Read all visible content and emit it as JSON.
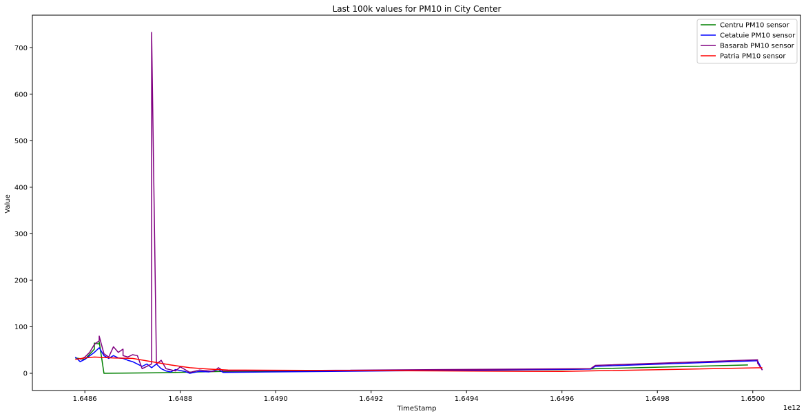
{
  "chart_data": {
    "type": "line",
    "title": "Last 100k values for PM10 in City Center",
    "xlabel": "TimeStamp",
    "ylabel": "Value",
    "x_offset_label": "1e12",
    "xlim": [
      1.64849,
      1.6501
    ],
    "ylim": [
      -37,
      770
    ],
    "x_ticks": [
      1.6486,
      1.6488,
      1.649,
      1.6492,
      1.6494,
      1.6496,
      1.6498,
      1.65
    ],
    "x_tick_labels": [
      "1.6486",
      "1.6488",
      "1.6490",
      "1.6492",
      "1.6494",
      "1.6496",
      "1.6498",
      "1.6500"
    ],
    "y_ticks": [
      0,
      100,
      200,
      300,
      400,
      500,
      600,
      700
    ],
    "y_tick_labels": [
      "0",
      "100",
      "200",
      "300",
      "400",
      "500",
      "600",
      "700"
    ],
    "grid": false,
    "legend_position": "top-right",
    "series": [
      {
        "name": "Centru PM10 sensor",
        "color": "#008000",
        "points": [
          [
            1.64858,
            33
          ],
          [
            1.6486,
            30
          ],
          [
            1.64862,
            52
          ],
          [
            1.64862,
            65
          ],
          [
            1.64863,
            63
          ],
          [
            1.64863,
            68
          ],
          [
            1.64864,
            0
          ],
          [
            1.64875,
            1
          ],
          [
            1.64889,
            4
          ],
          [
            1.6496,
            8
          ],
          [
            1.64999,
            18
          ]
        ]
      },
      {
        "name": "Cetatuie PM10 sensor",
        "color": "#0000ff",
        "points": [
          [
            1.64858,
            35
          ],
          [
            1.64859,
            25
          ],
          [
            1.6486,
            30
          ],
          [
            1.64862,
            45
          ],
          [
            1.64863,
            55
          ],
          [
            1.64864,
            38
          ],
          [
            1.64865,
            32
          ],
          [
            1.64866,
            38
          ],
          [
            1.64867,
            33
          ],
          [
            1.64868,
            32
          ],
          [
            1.64869,
            28
          ],
          [
            1.6487,
            25
          ],
          [
            1.64872,
            15
          ],
          [
            1.64873,
            20
          ],
          [
            1.64874,
            12
          ],
          [
            1.64875,
            20
          ],
          [
            1.64876,
            10
          ],
          [
            1.64877,
            5
          ],
          [
            1.64878,
            3
          ],
          [
            1.64879,
            8
          ],
          [
            1.64881,
            4
          ],
          [
            1.64882,
            0
          ],
          [
            1.64884,
            4
          ],
          [
            1.64886,
            3
          ],
          [
            1.64888,
            8
          ],
          [
            1.64889,
            2
          ],
          [
            1.64966,
            9
          ],
          [
            1.64967,
            15
          ],
          [
            1.65001,
            27
          ],
          [
            1.65002,
            7
          ]
        ]
      },
      {
        "name": "Basarab PM10 sensor",
        "color": "#800080",
        "points": [
          [
            1.64859,
            30
          ],
          [
            1.6486,
            35
          ],
          [
            1.64861,
            45
          ],
          [
            1.64862,
            62
          ],
          [
            1.64863,
            70
          ],
          [
            1.64863,
            80
          ],
          [
            1.64864,
            42
          ],
          [
            1.64865,
            35
          ],
          [
            1.64866,
            57
          ],
          [
            1.64867,
            45
          ],
          [
            1.64868,
            52
          ],
          [
            1.64868,
            38
          ],
          [
            1.64869,
            35
          ],
          [
            1.6487,
            40
          ],
          [
            1.64871,
            38
          ],
          [
            1.64872,
            10
          ],
          [
            1.64873,
            15
          ],
          [
            1.64874,
            20
          ],
          [
            1.64874,
            733
          ],
          [
            1.64875,
            20
          ],
          [
            1.64876,
            28
          ],
          [
            1.64877,
            10
          ],
          [
            1.64879,
            5
          ],
          [
            1.6488,
            14
          ],
          [
            1.64882,
            2
          ],
          [
            1.64884,
            7
          ],
          [
            1.64886,
            5
          ],
          [
            1.64887,
            4
          ],
          [
            1.64888,
            12
          ],
          [
            1.64889,
            5
          ],
          [
            1.64966,
            10
          ],
          [
            1.64967,
            17
          ],
          [
            1.65001,
            29
          ],
          [
            1.65001,
            22
          ],
          [
            1.65002,
            7
          ]
        ]
      },
      {
        "name": "Patria PM10 sensor",
        "color": "#ff0000",
        "points": [
          [
            1.64858,
            30
          ],
          [
            1.6486,
            33
          ],
          [
            1.64862,
            35
          ],
          [
            1.64866,
            33
          ],
          [
            1.6487,
            32
          ],
          [
            1.64874,
            25
          ],
          [
            1.64878,
            18
          ],
          [
            1.64882,
            12
          ],
          [
            1.64886,
            9
          ],
          [
            1.6489,
            7
          ],
          [
            1.6496,
            4
          ],
          [
            1.65002,
            12
          ]
        ]
      }
    ]
  }
}
